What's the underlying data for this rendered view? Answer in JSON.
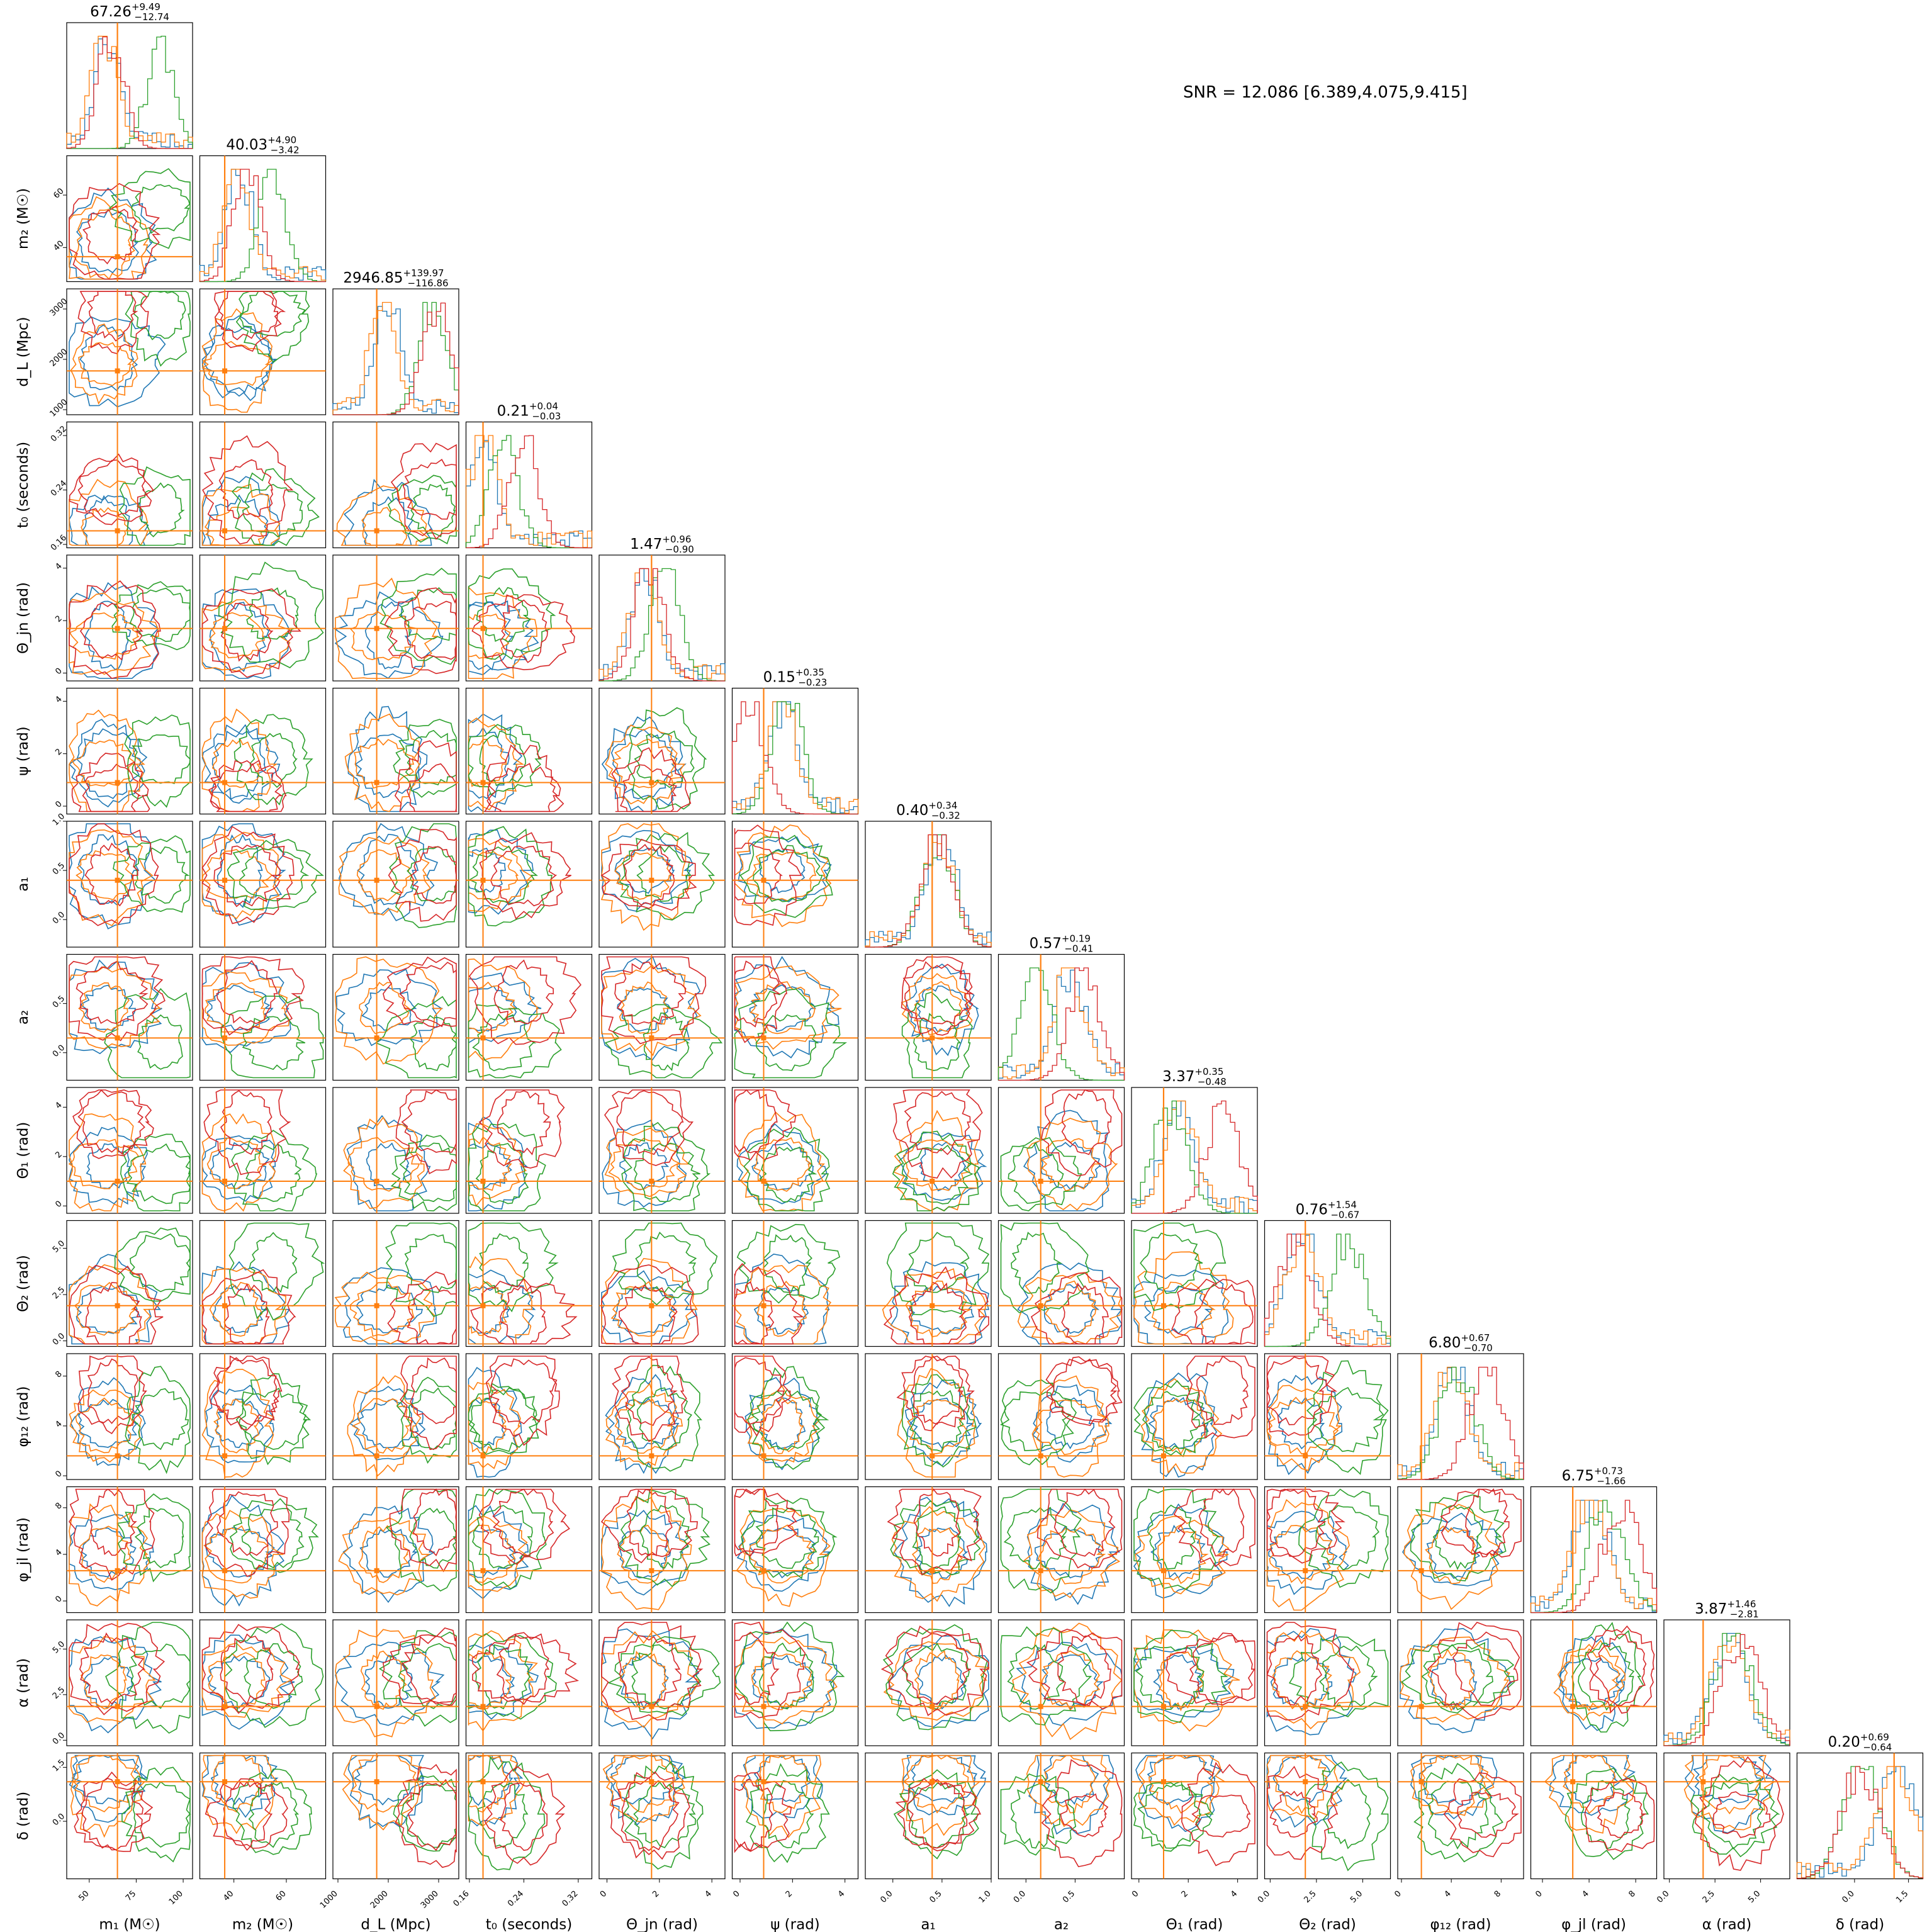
{
  "snr_text": "SNR = 12.086 [6.389,4.075,9.415]",
  "chart_data": {
    "type": "corner",
    "parameters": [
      {
        "key": "m1",
        "label": "m₁ (M☉)",
        "title": "67.26",
        "sup": "+9.49",
        "sub": "−12.74",
        "range": [
          38,
          105
        ],
        "ticks": [
          50,
          75,
          100
        ],
        "truth": 65
      },
      {
        "key": "m2",
        "label": "m₂ (M☉)",
        "title": "40.03",
        "sup": "+4.90",
        "sub": "−3.42",
        "range": [
          27,
          75
        ],
        "ticks": [
          40,
          60
        ],
        "truth": 36.5
      },
      {
        "key": "dL",
        "label": "d_L (Mpc)",
        "title": "2946.85",
        "sup": "+139.97",
        "sub": "−116.86",
        "range": [
          900,
          3400
        ],
        "ticks": [
          1000,
          2000,
          3000
        ],
        "truth": 1770
      },
      {
        "key": "t0",
        "label": "t₀ (seconds)",
        "title": "0.21",
        "sup": "+0.04",
        "sub": "−0.03",
        "range": [
          0.155,
          0.34
        ],
        "ticks": [
          0.16,
          0.24,
          0.32
        ],
        "truth": 0.18
      },
      {
        "key": "thetajn",
        "label": "Θ_jn (rad)",
        "title": "1.47",
        "sup": "+0.96",
        "sub": "−0.90",
        "range": [
          -0.3,
          4.5
        ],
        "ticks": [
          0,
          2,
          4
        ],
        "truth": 1.7
      },
      {
        "key": "psi",
        "label": "ψ (rad)",
        "title": "0.15",
        "sup": "+0.35",
        "sub": "−0.23",
        "range": [
          -0.3,
          4.5
        ],
        "ticks": [
          0,
          2,
          4
        ],
        "truth": 0.9
      },
      {
        "key": "a1",
        "label": "a₁",
        "title": "0.40",
        "sup": "+0.34",
        "sub": "−0.32",
        "range": [
          -0.28,
          1.0
        ],
        "ticks": [
          0,
          0.5,
          1.0
        ],
        "truth": 0.4
      },
      {
        "key": "a2",
        "label": "a₂",
        "title": "0.57",
        "sup": "+0.19",
        "sub": "−0.41",
        "range": [
          -0.28,
          1.0
        ],
        "ticks": [
          0,
          0.5
        ],
        "truth": 0.15
      },
      {
        "key": "theta1",
        "label": "Θ₁ (rad)",
        "title": "3.37",
        "sup": "+0.35",
        "sub": "−0.48",
        "range": [
          -0.3,
          4.8
        ],
        "ticks": [
          0,
          2,
          4
        ],
        "truth": 1.0
      },
      {
        "key": "theta2",
        "label": "Θ₂ (rad)",
        "title": "0.76",
        "sup": "+1.54",
        "sub": "−0.67",
        "range": [
          -0.3,
          6.5
        ],
        "ticks": [
          0,
          2.5,
          5.0
        ],
        "truth": 1.9
      },
      {
        "key": "phi12",
        "label": "φ₁₂ (rad)",
        "title": "6.80",
        "sup": "+0.67",
        "sub": "−0.70",
        "range": [
          -0.3,
          9.8
        ],
        "ticks": [
          0,
          4,
          8
        ],
        "truth": 1.6
      },
      {
        "key": "phijl",
        "label": "φ_jl (rad)",
        "title": "6.75",
        "sup": "+0.73",
        "sub": "−1.66",
        "range": [
          -1.0,
          9.8
        ],
        "ticks": [
          0,
          4,
          8
        ],
        "truth": 2.6
      },
      {
        "key": "alpha",
        "label": "α (rad)",
        "title": "3.87",
        "sup": "+1.46",
        "sub": "−2.81",
        "range": [
          -0.3,
          6.6
        ],
        "ticks": [
          0,
          2.5,
          5.0
        ],
        "truth": 1.85
      },
      {
        "key": "delta",
        "label": "δ (rad)",
        "title": "0.20",
        "sup": "+0.69",
        "sub": "−0.64",
        "range": [
          -1.6,
          1.9
        ],
        "ticks": [
          0,
          1.5
        ],
        "truth": 1.1
      }
    ],
    "tick_labels": [
      [
        "50",
        "75",
        "100"
      ],
      [
        "40",
        "60"
      ],
      [
        "1000",
        "2000",
        "3000"
      ],
      [
        "0.16",
        "0.24",
        "0.32"
      ],
      [
        "0",
        "2",
        "4"
      ],
      [
        "0",
        "2",
        "4"
      ],
      [
        "0.0",
        "0.5",
        "1.0"
      ],
      [
        "0.0",
        "0.5"
      ],
      [
        "0",
        "2",
        "4"
      ],
      [
        "0.0",
        "2.5",
        "5.0"
      ],
      [
        "0",
        "4",
        "8"
      ],
      [
        "0",
        "4",
        "8"
      ],
      [
        "0.0",
        "2.5",
        "5.0"
      ],
      [
        "0.0",
        "1.5"
      ]
    ],
    "series": [
      {
        "color": "#1f77b4",
        "centers": [
          60,
          42,
          2000,
          0.18,
          1.4,
          1.6,
          0.5,
          0.45,
          1.6,
          1.7,
          4.2,
          4.2,
          3.2,
          1.2
        ]
      },
      {
        "color": "#ff7f0e",
        "centers": [
          58,
          41,
          1900,
          0.18,
          1.4,
          1.6,
          0.45,
          0.45,
          1.7,
          1.7,
          4.0,
          4.0,
          3.3,
          1.1
        ]
      },
      {
        "color": "#2ca02c",
        "centers": [
          88,
          55,
          2900,
          0.21,
          2.2,
          1.8,
          0.45,
          0.1,
          1.3,
          4.2,
          4.5,
          5.5,
          3.5,
          0.2
        ]
      },
      {
        "color": "#d62728",
        "centers": [
          62,
          45,
          2950,
          0.24,
          1.6,
          0.4,
          0.45,
          0.6,
          3.4,
          1.3,
          6.8,
          6.8,
          3.9,
          0.2
        ]
      }
    ],
    "truth_color": "#ff7f0e"
  }
}
